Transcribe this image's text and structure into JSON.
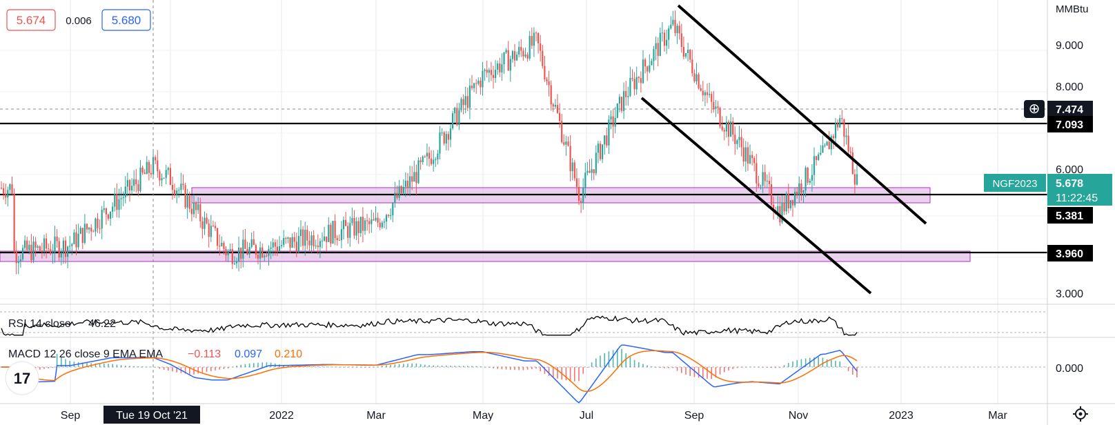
{
  "header": {
    "bid": "5.674",
    "spread": "0.006",
    "ask": "5.680"
  },
  "axis": {
    "unit": "MMBtu",
    "y_ticks": [
      "9.000",
      "8.000",
      "6.000",
      "3.000"
    ],
    "x_labels": [
      "Sep",
      "2022",
      "Mar",
      "May",
      "Jul",
      "Sep",
      "Nov",
      "2023",
      "Mar"
    ],
    "crosshair_date": "Tue 19 Oct '21",
    "zero_label": "0.000"
  },
  "price_labels": {
    "crosshair": "7.474",
    "resistance": "7.093",
    "symbol": "NGF2023",
    "last": "5.678",
    "countdown": "11:22:45",
    "support": "5.381",
    "support_low": "3.960"
  },
  "indicators": {
    "rsi_name": "RSI 14 close",
    "rsi_value": "46.22",
    "macd_name": "MACD 12 26 close 9 EMA EMA",
    "macd_hist": "−0.113",
    "macd_line": "0.097",
    "macd_signal": "0.210"
  },
  "colors": {
    "up": "#26a69a",
    "down": "#ef5350",
    "zone": "#e1bee7",
    "macd": "#2962ff",
    "signal": "#ff6d00",
    "lines": "#000000"
  },
  "chart_data": {
    "type": "candlestick",
    "series": [
      {
        "name": "NGF2023",
        "date": "2021-08",
        "close": 4.1
      },
      {
        "date": "2021-09-01",
        "close": 4.3
      },
      {
        "date": "2021-10-01",
        "close": 5.6
      },
      {
        "date": "2021-10-19",
        "close": 6.2
      },
      {
        "date": "2021-11-01",
        "close": 5.9
      },
      {
        "date": "2021-12-01",
        "close": 4.1
      },
      {
        "date": "2022-01-01",
        "close": 4.3
      },
      {
        "date": "2022-02-01",
        "close": 4.6
      },
      {
        "date": "2022-03-01",
        "close": 4.8
      },
      {
        "date": "2022-04-01",
        "close": 6.4
      },
      {
        "date": "2022-05-01",
        "close": 8.4
      },
      {
        "date": "2022-06-01",
        "close": 9.2
      },
      {
        "date": "2022-06-25",
        "close": 5.5
      },
      {
        "date": "2022-07-15",
        "close": 7.9
      },
      {
        "date": "2022-08-22",
        "close": 9.6
      },
      {
        "date": "2022-09-15",
        "close": 7.7
      },
      {
        "date": "2022-10-01",
        "close": 6.8
      },
      {
        "date": "2022-10-24",
        "close": 5.1
      },
      {
        "date": "2022-11-15",
        "close": 6.5
      },
      {
        "date": "2022-11-24",
        "close": 7.4
      },
      {
        "date": "2022-12-06",
        "close": 5.678
      }
    ],
    "levels": [
      7.474,
      7.093,
      5.381,
      3.96
    ],
    "zones": [
      [
        5.2,
        5.6
      ],
      [
        3.85,
        4.05
      ]
    ],
    "rsi_last": 46.22,
    "macd_last": {
      "hist": -0.113,
      "macd": 0.097,
      "signal": 0.21
    }
  }
}
